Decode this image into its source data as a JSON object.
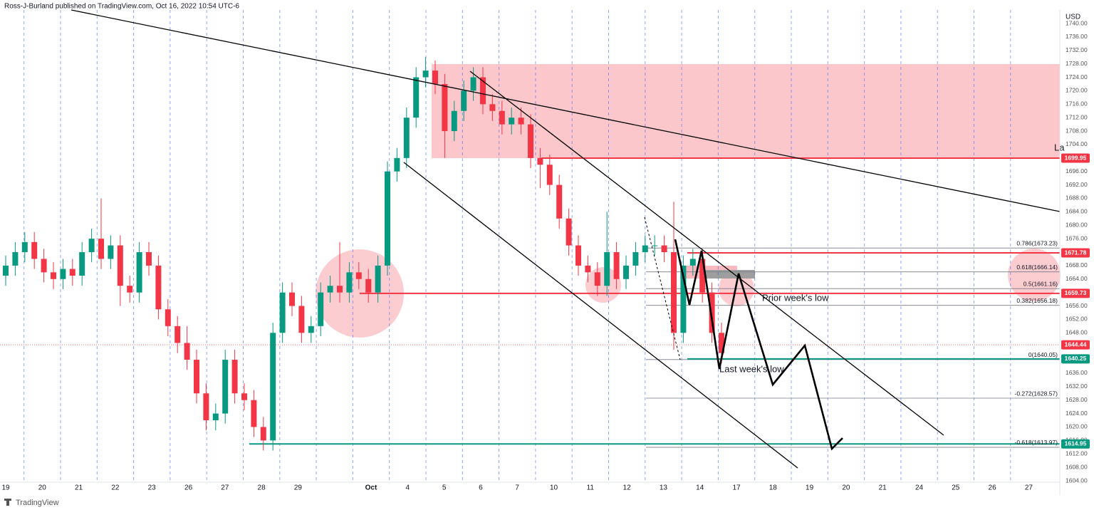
{
  "chart_data": {
    "type": "candlestick",
    "header": "Ross-J-Burland published on TradingView.com, Oct 16, 2022 10:54 UTC-6",
    "currency": "USD",
    "footer": "TradingView",
    "up_color": "#089981",
    "down_color": "#f23645",
    "categories": [
      "19",
      "20",
      "21",
      "22",
      "23",
      "26",
      "27",
      "28",
      "29",
      null,
      "Oct",
      "4",
      "5",
      "6",
      "7",
      "10",
      "11",
      "12",
      "13",
      "14",
      "17",
      "18",
      "19",
      "20",
      "21",
      "24",
      "25",
      "26",
      "27"
    ],
    "open": [
      1665,
      1668,
      1672,
      1675,
      1670,
      1666,
      1664,
      1667,
      1665,
      1672,
      1676,
      1670,
      1674,
      1662,
      1660,
      1672,
      1668,
      1655,
      1650,
      1645,
      1640,
      1630,
      1622,
      1624,
      1640,
      1630,
      1628,
      1620,
      1616,
      1648,
      1660,
      1656,
      1648,
      1650,
      1660,
      1662,
      1660,
      1666,
      1664,
      1660,
      1668,
      1696,
      1700,
      1712,
      1724,
      1726,
      1722,
      1708,
      1714,
      1720,
      1724,
      1716,
      1714,
      1710,
      1712,
      1710,
      1700,
      1698,
      1692,
      1682,
      1674,
      1668,
      1666,
      1662,
      1672,
      1664,
      1668,
      1672,
      1674,
      1674,
      1672,
      1648,
      1668,
      1670,
      1660,
      1648
    ],
    "high": [
      1671,
      1675,
      1678,
      1678,
      1673,
      1669,
      1670,
      1670,
      1675,
      1679,
      1688,
      1677,
      1677,
      1665,
      1675,
      1675,
      1671,
      1658,
      1653,
      1650,
      1643,
      1633,
      1627,
      1643,
      1643,
      1633,
      1631,
      1623,
      1651,
      1663,
      1663,
      1659,
      1653,
      1663,
      1665,
      1675,
      1669,
      1669,
      1667,
      1671,
      1699,
      1703,
      1715,
      1727,
      1730,
      1729,
      1725,
      1717,
      1723,
      1727,
      1727,
      1719,
      1717,
      1715,
      1715,
      1713,
      1703,
      1701,
      1695,
      1685,
      1677,
      1671,
      1669,
      1684,
      1675,
      1671,
      1675,
      1677,
      1677,
      1677,
      1687,
      1671,
      1673,
      1673,
      1663,
      1651
    ],
    "low": [
      1662,
      1665,
      1669,
      1667,
      1663,
      1661,
      1661,
      1662,
      1662,
      1669,
      1667,
      1667,
      1656,
      1657,
      1657,
      1665,
      1652,
      1647,
      1642,
      1637,
      1627,
      1619,
      1619,
      1621,
      1627,
      1625,
      1617,
      1613,
      1613,
      1645,
      1653,
      1645,
      1645,
      1647,
      1657,
      1657,
      1657,
      1661,
      1657,
      1657,
      1665,
      1693,
      1697,
      1709,
      1721,
      1719,
      1700,
      1705,
      1711,
      1717,
      1713,
      1711,
      1707,
      1707,
      1707,
      1697,
      1691,
      1689,
      1679,
      1671,
      1665,
      1663,
      1659,
      1659,
      1661,
      1661,
      1665,
      1669,
      1671,
      1669,
      1643,
      1645,
      1665,
      1657,
      1645,
      1639
    ],
    "close": [
      1668,
      1672,
      1675,
      1670,
      1666,
      1664,
      1667,
      1665,
      1672,
      1676,
      1670,
      1674,
      1662,
      1660,
      1672,
      1668,
      1655,
      1650,
      1645,
      1640,
      1630,
      1622,
      1624,
      1640,
      1630,
      1628,
      1620,
      1616,
      1648,
      1660,
      1656,
      1648,
      1650,
      1660,
      1662,
      1660,
      1666,
      1664,
      1660,
      1668,
      1696,
      1700,
      1712,
      1724,
      1726,
      1722,
      1708,
      1714,
      1720,
      1724,
      1716,
      1714,
      1710,
      1712,
      1710,
      1700,
      1698,
      1692,
      1682,
      1674,
      1668,
      1666,
      1662,
      1672,
      1664,
      1668,
      1672,
      1674,
      1674,
      1672,
      1648,
      1668,
      1670,
      1660,
      1648,
      1642
    ],
    "ylim": [
      1604,
      1740
    ],
    "yticks": [
      {
        "value": 1604,
        "label": "1604.00"
      },
      {
        "value": 1608,
        "label": "1608.00"
      },
      {
        "value": 1612,
        "label": "1612.00"
      },
      {
        "value": 1616,
        "label": "1616.00"
      },
      {
        "value": 1620,
        "label": "1620.00"
      },
      {
        "value": 1624,
        "label": "1624.00"
      },
      {
        "value": 1628,
        "label": "1628.00"
      },
      {
        "value": 1632,
        "label": "1632.00"
      },
      {
        "value": 1636,
        "label": "1636.00"
      },
      {
        "value": 1640,
        "label": "1640.00"
      },
      {
        "value": 1644,
        "label": "1644.00"
      },
      {
        "value": 1648,
        "label": "1648.00"
      },
      {
        "value": 1652,
        "label": "1652.00"
      },
      {
        "value": 1656,
        "label": "1656.00"
      },
      {
        "value": 1660,
        "label": "1660.00"
      },
      {
        "value": 1664,
        "label": "1664.00"
      },
      {
        "value": 1668,
        "label": "1668.00"
      },
      {
        "value": 1672,
        "label": "1672.00"
      },
      {
        "value": 1676,
        "label": "1676.00"
      },
      {
        "value": 1680,
        "label": "1680.00"
      },
      {
        "value": 1684,
        "label": "1684.00"
      },
      {
        "value": 1688,
        "label": "1688.00"
      },
      {
        "value": 1692,
        "label": "1692.00"
      },
      {
        "value": 1696,
        "label": "1696.00"
      },
      {
        "value": 1700,
        "label": "1700.00"
      },
      {
        "value": 1704,
        "label": "1704.00"
      },
      {
        "value": 1708,
        "label": "1708.00"
      },
      {
        "value": 1712,
        "label": "1712.00"
      },
      {
        "value": 1716,
        "label": "1716.00"
      },
      {
        "value": 1720,
        "label": "1720.00"
      },
      {
        "value": 1724,
        "label": "1724.00"
      },
      {
        "value": 1728,
        "label": "1728.00"
      },
      {
        "value": 1732,
        "label": "1732.00"
      },
      {
        "value": 1736,
        "label": "1736.00"
      },
      {
        "value": 1740,
        "label": "1740.00"
      }
    ],
    "grid": false,
    "levels": [
      {
        "value": 1699.95,
        "label": "1699.95",
        "color": "#f23645"
      },
      {
        "value": 1671.78,
        "label": "1671.78",
        "color": "#f23645"
      },
      {
        "value": 1659.73,
        "label": "1659.73",
        "color": "#f23645"
      },
      {
        "value": 1644.44,
        "label": "1644.44",
        "color": "#f23645"
      },
      {
        "value": 1640.25,
        "label": "1640.25",
        "color": "#089981"
      },
      {
        "value": 1614.95,
        "label": "1614.95",
        "color": "#089981"
      }
    ],
    "fib": [
      {
        "value": 1673.23,
        "label": "0.786(1673.23)"
      },
      {
        "value": 1666.14,
        "label": "0.618(1666.14)"
      },
      {
        "value": 1661.16,
        "label": "0.5(1661.16)"
      },
      {
        "value": 1656.18,
        "label": "0.382(1656.18)"
      },
      {
        "value": 1640.05,
        "label": "0(1640.05)"
      },
      {
        "value": 1628.57,
        "label": "-0.272(1628.57)"
      },
      {
        "value": 1613.97,
        "label": "-0.618(1613.97)"
      }
    ],
    "annotations": [
      "Prior week's low",
      "Last week's low",
      "La"
    ]
  }
}
